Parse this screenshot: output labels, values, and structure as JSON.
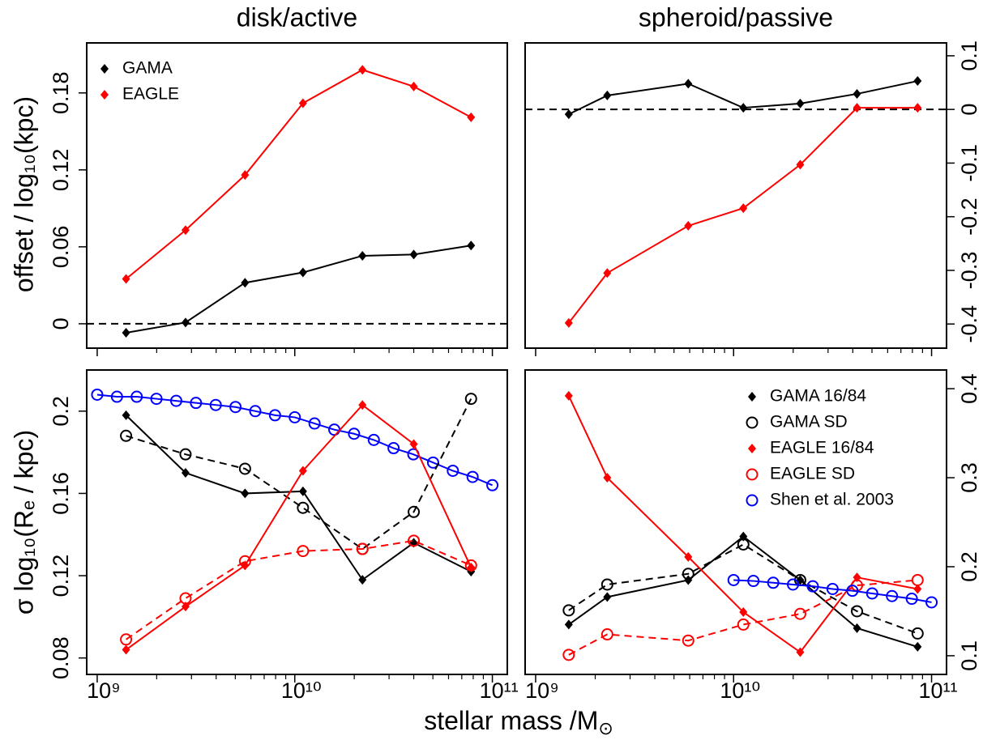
{
  "y_label_top": "offset / log₁₀(kpc)",
  "y_label_bottom": "σ log₁₀(Rₑ / kpc)",
  "x_label": [
    "stellar mass /M",
    "⊙"
  ],
  "x_minor_ticks": [
    2000000000,
    3000000000,
    4000000000,
    5000000000,
    6000000000,
    7000000000,
    8000000000,
    9000000000,
    20000000000,
    30000000000,
    40000000000,
    50000000000,
    60000000000,
    70000000000,
    80000000000,
    90000000000
  ],
  "chart_data": [
    {
      "type": "line",
      "title": "disk/active",
      "xscale": "log",
      "xlim": [
        885000000,
        119000000000
      ],
      "xticks": [
        1000000000,
        10000000000,
        100000000000
      ],
      "xtick_labels": false,
      "ylim": [
        -0.019,
        0.219
      ],
      "yticks": [
        0,
        0.06,
        0.12,
        0.18
      ],
      "y_side": "left",
      "hline": 0,
      "legend": "top-left",
      "series": [
        {
          "name": "GAMA",
          "color": "#000000",
          "marker": "diamond",
          "dashed": false,
          "x": [
            1400000000,
            2800000000,
            5600000000,
            11000000000,
            22000000000,
            40000000000,
            78000000000
          ],
          "values": [
            -0.007,
            0.001,
            0.032,
            0.04,
            0.053,
            0.054,
            0.061
          ]
        },
        {
          "name": "EAGLE",
          "color": "#ff0000",
          "marker": "diamond",
          "dashed": false,
          "x": [
            1400000000,
            2800000000,
            5600000000,
            11000000000,
            22000000000,
            40000000000,
            78000000000
          ],
          "values": [
            0.035,
            0.073,
            0.116,
            0.172,
            0.198,
            0.185,
            0.161
          ]
        }
      ]
    },
    {
      "type": "line",
      "title": "spheroid/passive",
      "xscale": "log",
      "xlim": [
        885000000,
        119000000000
      ],
      "xticks": [
        1000000000,
        10000000000,
        100000000000
      ],
      "xtick_labels": false,
      "ylim": [
        -0.445,
        0.124
      ],
      "yticks": [
        0.1,
        0,
        -0.1,
        -0.2,
        -0.3,
        -0.4
      ],
      "y_side": "right",
      "hline": 0,
      "series": [
        {
          "color": "#000000",
          "marker": "diamond",
          "dashed": false,
          "x": [
            1470000000,
            2300000000,
            5900000000,
            11200000000,
            21700000000,
            42000000000,
            85000000000
          ],
          "values": [
            -0.009,
            0.026,
            0.048,
            0.003,
            0.011,
            0.029,
            0.053
          ]
        },
        {
          "color": "#ff0000",
          "marker": "diamond",
          "dashed": false,
          "x": [
            1470000000,
            2300000000,
            5900000000,
            11200000000,
            21700000000,
            42000000000,
            85000000000
          ],
          "values": [
            -0.398,
            -0.305,
            -0.217,
            -0.184,
            -0.103,
            0.003,
            0.003
          ]
        }
      ]
    },
    {
      "type": "line",
      "xscale": "log",
      "xlim": [
        885000000,
        119000000000
      ],
      "xticks": [
        {
          "value": 1000000000,
          "label": "10⁹"
        },
        {
          "value": 10000000000,
          "label": "10¹⁰"
        },
        {
          "value": 100000000000,
          "label": "10¹¹"
        }
      ],
      "xtick_labels": true,
      "ylim": [
        0.072,
        0.22
      ],
      "yticks": [
        0.08,
        0.12,
        0.16,
        0.2
      ],
      "y_side": "left",
      "series": [
        {
          "color": "#0000ff",
          "marker": "circle",
          "dashed": false,
          "x": [
            1000000000,
            1259000000,
            1585000000,
            1995000000,
            2512000000,
            3162000000,
            3981000000,
            5012000000,
            6310000000,
            7943000000,
            10000000000,
            12590000000,
            15850000000,
            19950000000,
            25120000000,
            31620000000,
            39810000000,
            50120000000,
            63100000000,
            79430000000,
            100000000000
          ],
          "values": [
            0.208,
            0.207,
            0.207,
            0.206,
            0.205,
            0.204,
            0.203,
            0.202,
            0.2,
            0.198,
            0.197,
            0.194,
            0.191,
            0.189,
            0.186,
            0.182,
            0.179,
            0.175,
            0.171,
            0.168,
            0.164
          ]
        },
        {
          "color": "#000000",
          "marker": "diamond",
          "dashed": false,
          "x": [
            1400000000,
            2800000000,
            5600000000,
            11000000000,
            22000000000,
            40000000000,
            78000000000
          ],
          "values": [
            0.198,
            0.17,
            0.16,
            0.161,
            0.118,
            0.136,
            0.122
          ]
        },
        {
          "color": "#000000",
          "marker": "circle",
          "dashed": true,
          "x": [
            1400000000,
            2800000000,
            5600000000,
            11000000000,
            22000000000,
            40000000000,
            78000000000
          ],
          "values": [
            0.188,
            0.179,
            0.172,
            0.153,
            0.133,
            0.151,
            0.206
          ]
        },
        {
          "color": "#ff0000",
          "marker": "diamond",
          "dashed": false,
          "x": [
            1400000000,
            2800000000,
            5600000000,
            11000000000,
            22000000000,
            40000000000,
            78000000000
          ],
          "values": [
            0.084,
            0.105,
            0.125,
            0.171,
            0.203,
            0.184,
            0.124
          ]
        },
        {
          "color": "#ff0000",
          "marker": "circle",
          "dashed": true,
          "x": [
            1400000000,
            2800000000,
            5600000000,
            11000000000,
            22000000000,
            40000000000,
            78000000000
          ],
          "values": [
            0.089,
            0.109,
            0.127,
            0.132,
            0.133,
            0.137,
            0.125
          ]
        }
      ]
    },
    {
      "type": "line",
      "xscale": "log",
      "xlim": [
        885000000,
        119000000000
      ],
      "xticks": [
        {
          "value": 1000000000,
          "label": "10⁹"
        },
        {
          "value": 10000000000,
          "label": "10¹⁰"
        },
        {
          "value": 100000000000,
          "label": "10¹¹"
        }
      ],
      "xtick_labels": true,
      "ylim": [
        0.079,
        0.421
      ],
      "yticks": [
        0.1,
        0.2,
        0.3,
        0.4
      ],
      "y_side": "right",
      "legend": "top-right",
      "series": [
        {
          "name": "GAMA 16/84",
          "color": "#000000",
          "marker": "diamond",
          "dashed": false,
          "x": [
            1470000000,
            2300000000,
            5900000000,
            11200000000,
            21700000000,
            42000000000,
            85000000000
          ],
          "values": [
            0.135,
            0.166,
            0.185,
            0.234,
            0.185,
            0.131,
            0.11
          ]
        },
        {
          "name": "GAMA SD",
          "color": "#000000",
          "marker": "circle",
          "dashed": true,
          "x": [
            1470000000,
            2300000000,
            5900000000,
            11200000000,
            21700000000,
            42000000000,
            85000000000
          ],
          "values": [
            0.151,
            0.18,
            0.192,
            0.225,
            0.185,
            0.15,
            0.125
          ]
        },
        {
          "name": "EAGLE 16/84",
          "color": "#ff0000",
          "marker": "diamond",
          "dashed": false,
          "x": [
            1470000000,
            2300000000,
            5900000000,
            11200000000,
            21700000000,
            42000000000,
            85000000000
          ],
          "values": [
            0.392,
            0.3,
            0.211,
            0.149,
            0.104,
            0.188,
            0.175
          ]
        },
        {
          "name": "EAGLE SD",
          "color": "#ff0000",
          "marker": "circle",
          "dashed": true,
          "x": [
            1470000000,
            2300000000,
            5900000000,
            11200000000,
            21700000000,
            42000000000,
            85000000000
          ],
          "values": [
            0.101,
            0.124,
            0.117,
            0.135,
            0.147,
            0.179,
            0.185
          ]
        },
        {
          "name": "Shen et al. 2003",
          "color": "#0000ff",
          "marker": "circle",
          "dashed": false,
          "x": [
            10000000000,
            12590000000,
            15850000000,
            19950000000,
            25120000000,
            31620000000,
            39810000000,
            50120000000,
            63100000000,
            79430000000,
            100000000000
          ],
          "values": [
            0.185,
            0.184,
            0.182,
            0.18,
            0.178,
            0.175,
            0.173,
            0.17,
            0.167,
            0.164,
            0.16
          ]
        }
      ]
    }
  ]
}
